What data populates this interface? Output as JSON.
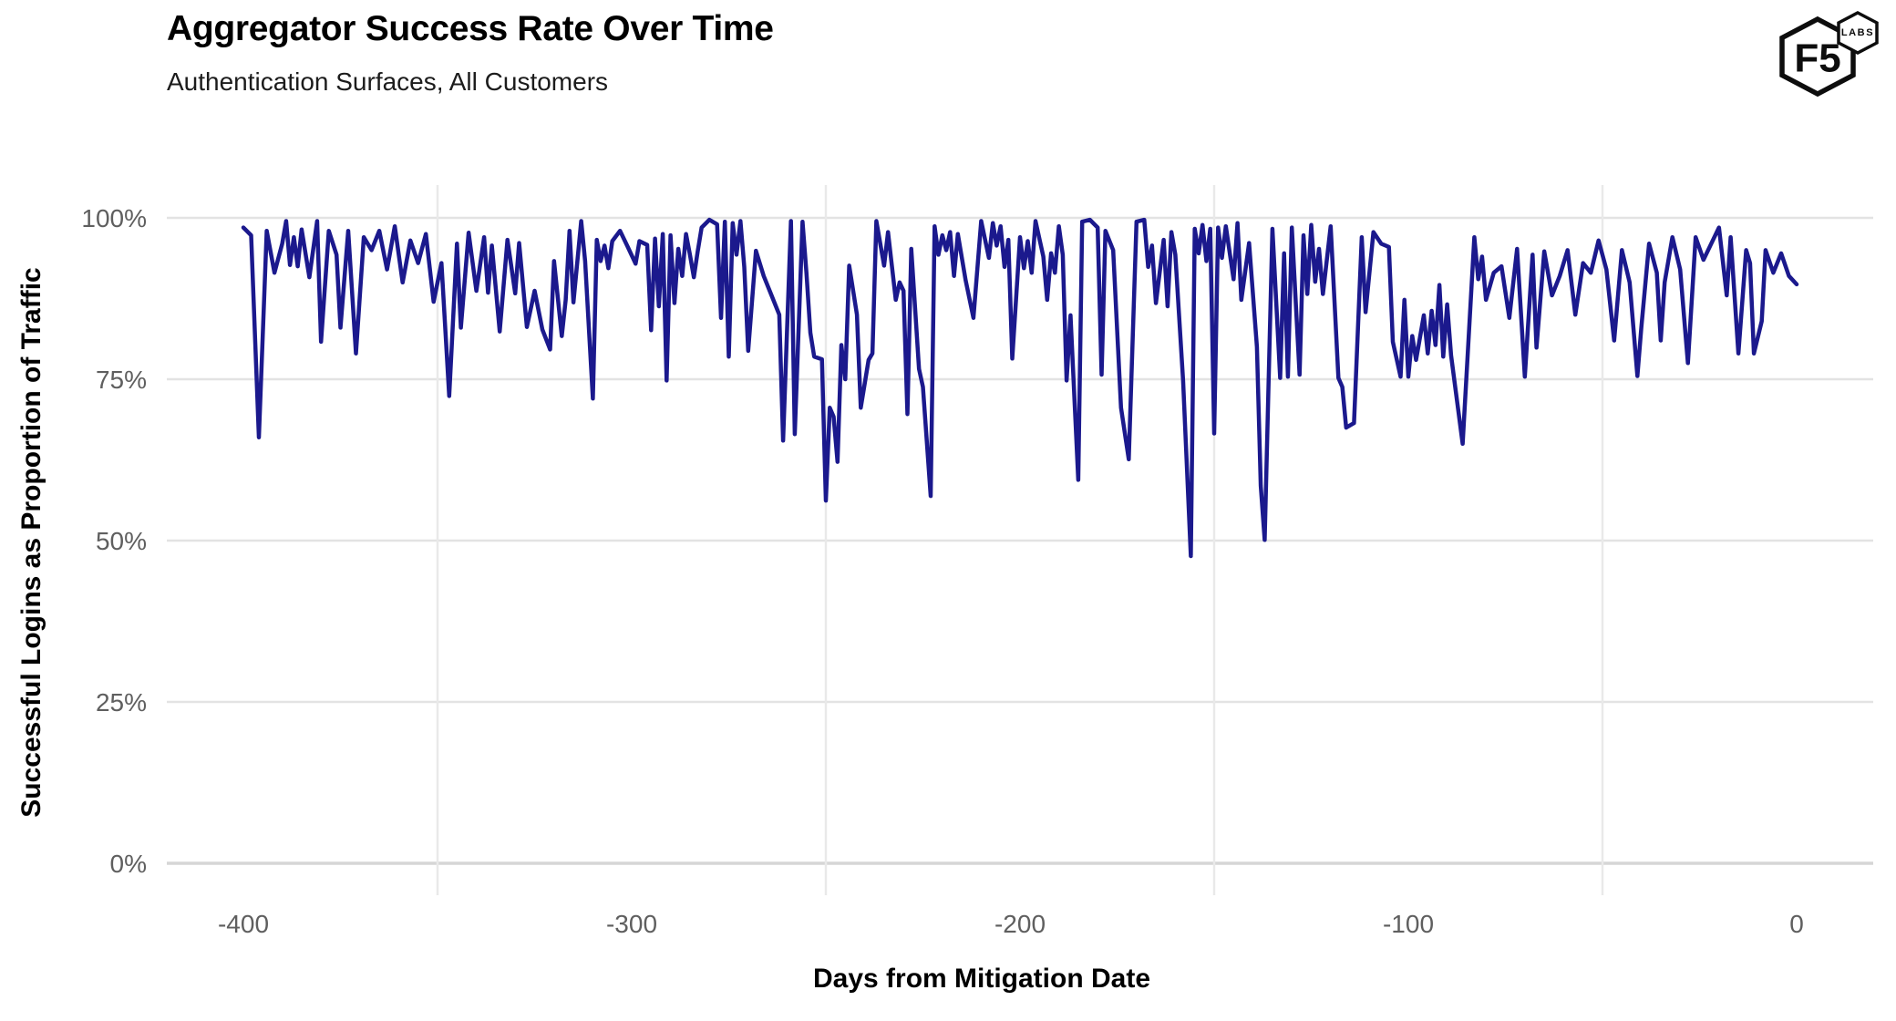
{
  "header": {
    "title": "Aggregator Success Rate Over Time",
    "subtitle": "Authentication Surfaces, All Customers"
  },
  "logo": {
    "f5": "F5",
    "labs": "LABS"
  },
  "colors": {
    "line": "#1b198d",
    "grid_major": "#e3e3e3",
    "grid_minor": "#e9e9e9",
    "axis_line": "#d6d6d6",
    "tick_text": "#5f5f5f",
    "title_text": "#000000"
  },
  "chart_data": {
    "type": "line",
    "title": "Aggregator Success Rate Over Time",
    "subtitle": "Authentication Surfaces, All Customers",
    "xlabel": "Days from Mitigation Date",
    "ylabel": "Successful Logins as Proportion of Traffic",
    "xlim": [
      -420,
      20
    ],
    "ylim": [
      0,
      100
    ],
    "x_ticks": [
      -400,
      -300,
      -200,
      -100,
      0
    ],
    "x_tick_labels": [
      "-400",
      "-300",
      "-200",
      "-100",
      "0"
    ],
    "y_ticks": [
      100,
      75,
      50,
      25,
      0
    ],
    "y_tick_labels": [
      "100%",
      "75%",
      "50%",
      "25%",
      "0%"
    ],
    "grid": {
      "horizontal": "major",
      "vertical_minor_days": [
        -350,
        -250,
        -150,
        -50
      ]
    },
    "legend": "none",
    "series": [
      {
        "name": "All Customers",
        "unit": "percent_successful_logins",
        "points": [
          [
            -400,
            98.5
          ],
          [
            -398,
            97.3
          ],
          [
            -396,
            66
          ],
          [
            -394,
            98
          ],
          [
            -392,
            91.5
          ],
          [
            -390,
            96
          ],
          [
            -389,
            99.5
          ],
          [
            -388,
            92.7
          ],
          [
            -387,
            97
          ],
          [
            -386,
            92.5
          ],
          [
            -385,
            98.2
          ],
          [
            -383,
            90.8
          ],
          [
            -381,
            99.5
          ],
          [
            -380,
            80.8
          ],
          [
            -378,
            98
          ],
          [
            -376,
            94.3
          ],
          [
            -375,
            83
          ],
          [
            -373,
            98
          ],
          [
            -371,
            79
          ],
          [
            -369,
            97
          ],
          [
            -367,
            95
          ],
          [
            -365,
            98
          ],
          [
            -363,
            92
          ],
          [
            -361,
            98.7
          ],
          [
            -359,
            90
          ],
          [
            -357,
            96.5
          ],
          [
            -355,
            93
          ],
          [
            -353,
            97.5
          ],
          [
            -351,
            87
          ],
          [
            -349,
            93
          ],
          [
            -347,
            72.4
          ],
          [
            -345,
            96
          ],
          [
            -344,
            83
          ],
          [
            -342,
            97.7
          ],
          [
            -340,
            88.7
          ],
          [
            -338,
            97
          ],
          [
            -337,
            88.4
          ],
          [
            -336,
            95.7
          ],
          [
            -334,
            82.4
          ],
          [
            -332,
            96.6
          ],
          [
            -330,
            88.3
          ],
          [
            -329,
            96.1
          ],
          [
            -327,
            83.1
          ],
          [
            -325,
            88.7
          ],
          [
            -323,
            82.7
          ],
          [
            -321,
            79.6
          ],
          [
            -320,
            93.3
          ],
          [
            -318,
            81.7
          ],
          [
            -317,
            87.3
          ],
          [
            -316,
            98
          ],
          [
            -315,
            86.9
          ],
          [
            -313,
            99.5
          ],
          [
            -312,
            93.3
          ],
          [
            -310,
            72
          ],
          [
            -309,
            96.6
          ],
          [
            -308,
            93.3
          ],
          [
            -307,
            95.7
          ],
          [
            -306,
            92.2
          ],
          [
            -305,
            96.4
          ],
          [
            -303,
            98
          ],
          [
            -301,
            95.5
          ],
          [
            -299,
            92.9
          ],
          [
            -298,
            96.4
          ],
          [
            -296,
            95.8
          ],
          [
            -295,
            82.6
          ],
          [
            -294,
            96.8
          ],
          [
            -293,
            86.3
          ],
          [
            -292,
            97.5
          ],
          [
            -291,
            74.8
          ],
          [
            -290,
            97.3
          ],
          [
            -289,
            86.8
          ],
          [
            -288,
            95.2
          ],
          [
            -287,
            91
          ],
          [
            -286,
            97.5
          ],
          [
            -285,
            94.3
          ],
          [
            -284,
            90.8
          ],
          [
            -283,
            94.8
          ],
          [
            -282,
            98.5
          ],
          [
            -280,
            99.7
          ],
          [
            -278,
            99
          ],
          [
            -277,
            84.5
          ],
          [
            -276,
            99.4
          ],
          [
            -275,
            78.5
          ],
          [
            -274,
            99.2
          ],
          [
            -273,
            94.3
          ],
          [
            -272,
            99.5
          ],
          [
            -271,
            92.4
          ],
          [
            -270,
            79.4
          ],
          [
            -268,
            94.9
          ],
          [
            -266,
            91
          ],
          [
            -264,
            88
          ],
          [
            -262,
            85
          ],
          [
            -261,
            65.5
          ],
          [
            -259,
            99.5
          ],
          [
            -258,
            66.5
          ],
          [
            -256,
            99.4
          ],
          [
            -255,
            91.5
          ],
          [
            -254,
            82.2
          ],
          [
            -253,
            78.5
          ],
          [
            -251,
            78.1
          ],
          [
            -250,
            56.2
          ],
          [
            -249,
            70.6
          ],
          [
            -248,
            69.2
          ],
          [
            -247,
            62.2
          ],
          [
            -246,
            80.3
          ],
          [
            -245,
            75
          ],
          [
            -244,
            92.6
          ],
          [
            -242,
            85
          ],
          [
            -241,
            70.6
          ],
          [
            -239,
            78
          ],
          [
            -238,
            79
          ],
          [
            -237,
            99.5
          ],
          [
            -235,
            92.6
          ],
          [
            -234,
            97.8
          ],
          [
            -232,
            87.3
          ],
          [
            -231,
            90
          ],
          [
            -230,
            88.7
          ],
          [
            -229,
            69.6
          ],
          [
            -228,
            95.2
          ],
          [
            -226,
            76.6
          ],
          [
            -225,
            73.8
          ],
          [
            -223,
            56.9
          ],
          [
            -222,
            98.7
          ],
          [
            -221,
            94.3
          ],
          [
            -220,
            97.3
          ],
          [
            -219,
            95
          ],
          [
            -218,
            97.8
          ],
          [
            -217,
            91
          ],
          [
            -216,
            97.5
          ],
          [
            -214,
            90.3
          ],
          [
            -212,
            84.5
          ],
          [
            -210,
            99.5
          ],
          [
            -208,
            93.8
          ],
          [
            -207,
            99.2
          ],
          [
            -206,
            95.7
          ],
          [
            -205,
            98.7
          ],
          [
            -204,
            92.4
          ],
          [
            -203,
            96.6
          ],
          [
            -202,
            78.2
          ],
          [
            -200,
            97
          ],
          [
            -199,
            92.2
          ],
          [
            -198,
            96.4
          ],
          [
            -197,
            91.5
          ],
          [
            -196,
            99.5
          ],
          [
            -194,
            94
          ],
          [
            -193,
            87.3
          ],
          [
            -192,
            94.5
          ],
          [
            -191,
            91.5
          ],
          [
            -190,
            98.7
          ],
          [
            -189,
            94.3
          ],
          [
            -188,
            74.8
          ],
          [
            -187,
            84.9
          ],
          [
            -185,
            59.4
          ],
          [
            -184,
            99.4
          ],
          [
            -182,
            99.7
          ],
          [
            -180,
            98.5
          ],
          [
            -179,
            75.7
          ],
          [
            -178,
            98
          ],
          [
            -176,
            95
          ],
          [
            -174,
            70.6
          ],
          [
            -172,
            62.6
          ],
          [
            -170,
            99.4
          ],
          [
            -168,
            99.7
          ],
          [
            -167,
            92.4
          ],
          [
            -166,
            95.7
          ],
          [
            -165,
            86.8
          ],
          [
            -163,
            96.6
          ],
          [
            -162,
            86.3
          ],
          [
            -161,
            97.8
          ],
          [
            -160,
            94.3
          ],
          [
            -158,
            74.8
          ],
          [
            -156,
            47.6
          ],
          [
            -155,
            98.3
          ],
          [
            -154,
            94.5
          ],
          [
            -153,
            98.9
          ],
          [
            -152,
            93.3
          ],
          [
            -151,
            98.3
          ],
          [
            -150,
            66.6
          ],
          [
            -149,
            98.5
          ],
          [
            -148,
            93.8
          ],
          [
            -147,
            98.7
          ],
          [
            -145,
            90.5
          ],
          [
            -144,
            99.2
          ],
          [
            -143,
            87.3
          ],
          [
            -141,
            96.1
          ],
          [
            -139,
            80
          ],
          [
            -138,
            58.5
          ],
          [
            -137,
            50.1
          ],
          [
            -135,
            98.3
          ],
          [
            -133,
            75.2
          ],
          [
            -132,
            94.5
          ],
          [
            -131,
            75.4
          ],
          [
            -130,
            98.5
          ],
          [
            -128,
            75.7
          ],
          [
            -127,
            97.3
          ],
          [
            -126,
            88.2
          ],
          [
            -125,
            98.9
          ],
          [
            -124,
            90.1
          ],
          [
            -123,
            95.2
          ],
          [
            -122,
            88.2
          ],
          [
            -120,
            98.7
          ],
          [
            -118,
            75.2
          ],
          [
            -117,
            73.8
          ],
          [
            -116,
            67.5
          ],
          [
            -114,
            68.2
          ],
          [
            -112,
            97
          ],
          [
            -111,
            85.4
          ],
          [
            -109,
            97.8
          ],
          [
            -107,
            96
          ],
          [
            -105,
            95.5
          ],
          [
            -104,
            80.8
          ],
          [
            -102,
            75.4
          ],
          [
            -101,
            87.3
          ],
          [
            -100,
            75.4
          ],
          [
            -99,
            81.7
          ],
          [
            -98,
            78
          ],
          [
            -96,
            84.9
          ],
          [
            -95,
            79
          ],
          [
            -94,
            85.6
          ],
          [
            -93,
            80.3
          ],
          [
            -92,
            89.6
          ],
          [
            -91,
            78.5
          ],
          [
            -90,
            86.6
          ],
          [
            -89,
            78.7
          ],
          [
            -86,
            65
          ],
          [
            -83,
            97
          ],
          [
            -82,
            90.5
          ],
          [
            -81,
            94
          ],
          [
            -80,
            87.3
          ],
          [
            -78,
            91.5
          ],
          [
            -76,
            92.5
          ],
          [
            -74,
            84.5
          ],
          [
            -72,
            95.2
          ],
          [
            -70,
            75.4
          ],
          [
            -68,
            94.3
          ],
          [
            -67,
            79.9
          ],
          [
            -65,
            94.8
          ],
          [
            -63,
            88
          ],
          [
            -61,
            91
          ],
          [
            -59,
            95
          ],
          [
            -57,
            85
          ],
          [
            -55,
            93
          ],
          [
            -53,
            91.5
          ],
          [
            -51,
            96.5
          ],
          [
            -49,
            92
          ],
          [
            -47,
            81
          ],
          [
            -45,
            95
          ],
          [
            -43,
            90
          ],
          [
            -41,
            75.5
          ],
          [
            -40,
            83
          ],
          [
            -38,
            96
          ],
          [
            -36,
            91.5
          ],
          [
            -35,
            81
          ],
          [
            -34,
            90
          ],
          [
            -32,
            97
          ],
          [
            -30,
            92
          ],
          [
            -28,
            77.5
          ],
          [
            -26,
            97
          ],
          [
            -24,
            93.5
          ],
          [
            -22,
            96
          ],
          [
            -20,
            98.5
          ],
          [
            -18,
            88
          ],
          [
            -17,
            97
          ],
          [
            -15,
            79
          ],
          [
            -13,
            95
          ],
          [
            -12,
            93
          ],
          [
            -11,
            79
          ],
          [
            -9,
            84
          ],
          [
            -8,
            95
          ],
          [
            -6,
            91.5
          ],
          [
            -4,
            94.5
          ],
          [
            -2,
            91
          ],
          [
            0,
            89.7
          ]
        ]
      }
    ]
  }
}
